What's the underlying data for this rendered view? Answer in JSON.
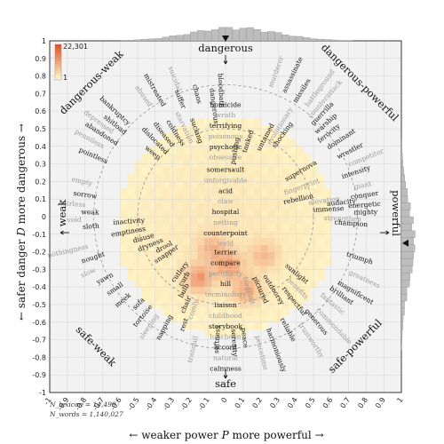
{
  "chart_data": {
    "type": "heatmap",
    "xlabel": {
      "left": "← weaker",
      "symbol": "power",
      "var": "P",
      "right": "more powerful →"
    },
    "ylabel": {
      "bottom": "← safer",
      "symbol": "danger",
      "var": "D",
      "top": "more dangerous →"
    },
    "xlim": [
      -1,
      1
    ],
    "ylim": [
      -1,
      1
    ],
    "xticks": [
      "-1",
      "-0.9",
      "-0.8",
      "-0.7",
      "-0.6",
      "-0.5",
      "-0.4",
      "-0.3",
      "-0.2",
      "-0.1",
      "0",
      "0.1",
      "0.2",
      "0.3",
      "0.4",
      "0.5",
      "0.6",
      "0.7",
      "0.8",
      "0.9",
      "1"
    ],
    "yticks": [
      "1",
      "0.9",
      "0.8",
      "0.7",
      "0.6",
      "0.5",
      "0.4",
      "0.3",
      "0.2",
      "0.1",
      "0",
      "-0.1",
      "-0.2",
      "-0.3",
      "-0.4",
      "-0.5",
      "-0.6",
      "-0.7",
      "-0.8",
      "-0.9",
      "-1"
    ],
    "colorbar": {
      "max_label": "22,301",
      "min_label": "1",
      "low_color": "#fff7c8",
      "high_color": "#e2512a"
    },
    "stats": {
      "lexicon_label": "N_lexicon",
      "lexicon_value": "14,499",
      "words_label": "N_words",
      "words_value": "1,140,027"
    },
    "grid": true,
    "directions": {
      "top": "dangerous",
      "bottom": "safe",
      "left": "weak",
      "right": "powerful",
      "top_left": "dangerous-weak",
      "top_right": "dangerous-powerful",
      "bottom_left": "safe-weak",
      "bottom_right": "safe-powerful"
    },
    "center_words": [
      {
        "text": "homicide",
        "x": 0.0,
        "y": 0.64,
        "gray": false
      },
      {
        "text": "wrath",
        "x": 0.0,
        "y": 0.58,
        "gray": true
      },
      {
        "text": "terrifying",
        "x": 0.0,
        "y": 0.52,
        "gray": false
      },
      {
        "text": "poisonous",
        "x": 0.0,
        "y": 0.46,
        "gray": true
      },
      {
        "text": "psychotic",
        "x": 0.0,
        "y": 0.4,
        "gray": false
      },
      {
        "text": "obsessive",
        "x": 0.0,
        "y": 0.34,
        "gray": true
      },
      {
        "text": "somersault",
        "x": 0.0,
        "y": 0.27,
        "gray": false
      },
      {
        "text": "unforgivable",
        "x": 0.0,
        "y": 0.21,
        "gray": true
      },
      {
        "text": "acid",
        "x": 0.0,
        "y": 0.15,
        "gray": false
      },
      {
        "text": "claw",
        "x": 0.0,
        "y": 0.09,
        "gray": true
      },
      {
        "text": "hospital",
        "x": 0.0,
        "y": 0.03,
        "gray": false
      },
      {
        "text": "netting",
        "x": 0.0,
        "y": -0.03,
        "gray": true
      },
      {
        "text": "counterpoint",
        "x": 0.0,
        "y": -0.09,
        "gray": false
      },
      {
        "text": "weld",
        "x": 0.0,
        "y": -0.15,
        "gray": true
      },
      {
        "text": "terrier",
        "x": 0.0,
        "y": -0.2,
        "gray": false
      },
      {
        "text": "compare",
        "x": 0.0,
        "y": -0.26,
        "gray": false
      },
      {
        "text": "peculiarly",
        "x": 0.0,
        "y": -0.32,
        "gray": true
      },
      {
        "text": "hill",
        "x": 0.0,
        "y": -0.38,
        "gray": false
      },
      {
        "text": "terminology",
        "x": 0.0,
        "y": -0.44,
        "gray": true
      },
      {
        "text": "liaison",
        "x": 0.0,
        "y": -0.5,
        "gray": false
      },
      {
        "text": "childhood",
        "x": 0.0,
        "y": -0.56,
        "gray": true
      },
      {
        "text": "storybook",
        "x": 0.0,
        "y": -0.62,
        "gray": false
      },
      {
        "text": "luncheon",
        "x": 0.0,
        "y": -0.68,
        "gray": true
      },
      {
        "text": "accord",
        "x": 0.0,
        "y": -0.74,
        "gray": false
      },
      {
        "text": "natural",
        "x": 0.0,
        "y": -0.8,
        "gray": true
      },
      {
        "text": "calmness",
        "x": 0.0,
        "y": -0.86,
        "gray": false
      }
    ],
    "ray_words": [
      {
        "text": "dangerous",
        "angle": 97,
        "r": 0.53,
        "gray": false
      },
      {
        "text": "bloodbath",
        "angle": 93,
        "r": 0.62,
        "gray": false
      },
      {
        "text": "murderer",
        "angle": 70,
        "r": 0.78,
        "gray": true
      },
      {
        "text": "assassinate",
        "angle": 64,
        "r": 0.78,
        "gray": false
      },
      {
        "text": "missiles",
        "angle": 58,
        "r": 0.76,
        "gray": false
      },
      {
        "text": "battleground",
        "angle": 53,
        "r": 0.78,
        "gray": true
      },
      {
        "text": "counterattack",
        "angle": 49,
        "r": 0.74,
        "gray": true
      },
      {
        "text": "guerrilla",
        "angle": 46,
        "r": 0.72,
        "gray": false
      },
      {
        "text": "warship",
        "angle": 42,
        "r": 0.7,
        "gray": false
      },
      {
        "text": "ferocity",
        "angle": 38,
        "r": 0.68,
        "gray": false
      },
      {
        "text": "dominant",
        "angle": 33,
        "r": 0.7,
        "gray": false
      },
      {
        "text": "wrestler",
        "angle": 27,
        "r": 0.72,
        "gray": false
      },
      {
        "text": "competitor",
        "angle": 22,
        "r": 0.76,
        "gray": true
      },
      {
        "text": "intensity",
        "angle": 18,
        "r": 0.7,
        "gray": false
      },
      {
        "text": "giant",
        "angle": 12,
        "r": 0.75,
        "gray": true
      },
      {
        "text": "conquer",
        "angle": 8,
        "r": 0.72,
        "gray": false
      },
      {
        "text": "energetic",
        "angle": 4,
        "r": 0.7,
        "gray": false
      },
      {
        "text": "mighty",
        "angle": 1,
        "r": 0.73,
        "gray": false
      },
      {
        "text": "triumph",
        "angle": -18,
        "r": 0.72,
        "gray": false
      },
      {
        "text": "greatness",
        "angle": -25,
        "r": 0.77,
        "gray": true
      },
      {
        "text": "magnificent",
        "angle": -31,
        "r": 0.74,
        "gray": false
      },
      {
        "text": "brilliant",
        "angle": -35,
        "r": 0.72,
        "gray": false
      },
      {
        "text": "fantastic",
        "angle": -40,
        "r": 0.7,
        "gray": true
      },
      {
        "text": "commendable",
        "angle": -46,
        "r": 0.74,
        "gray": true
      },
      {
        "text": "generous",
        "angle": -50,
        "r": 0.7,
        "gray": false
      },
      {
        "text": "trustworthy",
        "angle": -56,
        "r": 0.74,
        "gray": true
      },
      {
        "text": "reliable",
        "angle": -62,
        "r": 0.66,
        "gray": false
      },
      {
        "text": "harmoniously",
        "angle": -70,
        "r": 0.68,
        "gray": false
      },
      {
        "text": "peacetime",
        "angle": -76,
        "r": 0.7,
        "gray": true
      },
      {
        "text": "peace",
        "angle": -82,
        "r": 0.64,
        "gray": false
      },
      {
        "text": "serenity",
        "angle": -87,
        "r": 0.64,
        "gray": false
      },
      {
        "text": "softness",
        "angle": -93,
        "r": 0.62,
        "gray": false
      },
      {
        "text": "tranquil",
        "angle": -103,
        "r": 0.7,
        "gray": true
      },
      {
        "text": "rest",
        "angle": -110,
        "r": 0.62,
        "gray": false
      },
      {
        "text": "napping",
        "angle": -118,
        "r": 0.64,
        "gray": false
      },
      {
        "text": "sleeping",
        "angle": -124,
        "r": 0.68,
        "gray": true
      },
      {
        "text": "tortoise",
        "angle": -129,
        "r": 0.66,
        "gray": false
      },
      {
        "text": "sofa",
        "angle": -134,
        "r": 0.66,
        "gray": false
      },
      {
        "text": "meek",
        "angle": -140,
        "r": 0.7,
        "gray": false
      },
      {
        "text": "small",
        "angle": -146,
        "r": 0.7,
        "gray": false
      },
      {
        "text": "yawn",
        "angle": -152,
        "r": 0.72,
        "gray": false
      },
      {
        "text": "slow",
        "angle": -157,
        "r": 0.8,
        "gray": true
      },
      {
        "text": "nought",
        "angle": -162,
        "r": 0.72,
        "gray": false
      },
      {
        "text": "nothingness",
        "angle": -167,
        "r": 0.8,
        "gray": true
      },
      {
        "text": "sloth",
        "angle": -175,
        "r": 0.72,
        "gray": false
      },
      {
        "text": "void",
        "angle": -178,
        "r": 0.82,
        "gray": true
      },
      {
        "text": "weak",
        "angle": 179,
        "r": 0.72,
        "gray": false
      },
      {
        "text": "hairless",
        "angle": 176,
        "r": 0.8,
        "gray": true
      },
      {
        "text": "sorrow",
        "angle": 172,
        "r": 0.74,
        "gray": false
      },
      {
        "text": "empty",
        "angle": 167,
        "r": 0.78,
        "gray": true
      },
      {
        "text": "pointless",
        "angle": 156,
        "r": 0.74,
        "gray": false
      },
      {
        "text": "penniless",
        "angle": 151,
        "r": 0.8,
        "gray": true
      },
      {
        "text": "abandoned",
        "angle": 147,
        "r": 0.74,
        "gray": false
      },
      {
        "text": "depressed",
        "angle": 144,
        "r": 0.8,
        "gray": true
      },
      {
        "text": "shitload",
        "angle": 141,
        "r": 0.74,
        "gray": false
      },
      {
        "text": "bankruptcy",
        "angle": 137,
        "r": 0.76,
        "gray": false
      },
      {
        "text": "abused",
        "angle": 125,
        "r": 0.76,
        "gray": true
      },
      {
        "text": "mistreated",
        "angle": 120,
        "r": 0.72,
        "gray": false
      },
      {
        "text": "suicidal",
        "angle": 111,
        "r": 0.76,
        "gray": true
      },
      {
        "text": "suffer",
        "angle": 112,
        "r": 0.66,
        "gray": false
      },
      {
        "text": "chaos",
        "angle": 104,
        "r": 0.66,
        "gray": false
      }
    ],
    "inner_words": [
      {
        "text": "weep",
        "angle": 140,
        "r": 0.5,
        "gray": false
      },
      {
        "text": "dislocated",
        "angle": 134,
        "r": 0.49,
        "gray": false
      },
      {
        "text": "diseased",
        "angle": 128,
        "r": 0.5,
        "gray": false
      },
      {
        "text": "coldness",
        "angle": 122,
        "r": 0.47,
        "gray": false
      },
      {
        "text": "starvation",
        "angle": 116,
        "r": 0.46,
        "gray": true
      },
      {
        "text": "sucking",
        "angle": 110,
        "r": 0.44,
        "gray": false
      },
      {
        "text": "inactivity",
        "angle": -176,
        "r": 0.46,
        "gray": false
      },
      {
        "text": "emptiness",
        "angle": -170,
        "r": 0.46,
        "gray": false
      },
      {
        "text": "disuse",
        "angle": -164,
        "r": 0.42,
        "gray": false
      },
      {
        "text": "dryness",
        "angle": -158,
        "r": 0.38,
        "gray": false
      },
      {
        "text": "drool",
        "angle": -152,
        "r": 0.34,
        "gray": false
      },
      {
        "text": "snapper",
        "angle": -146,
        "r": 0.32,
        "gray": false
      },
      {
        "text": "cutlery",
        "angle": -128,
        "r": 0.34,
        "gray": false
      },
      {
        "text": "curb",
        "angle": -122,
        "r": 0.38,
        "gray": false
      },
      {
        "text": "bulb",
        "angle": -118,
        "r": 0.44,
        "gray": false
      },
      {
        "text": "chair",
        "angle": -113,
        "r": 0.5,
        "gray": false
      },
      {
        "text": "comfy",
        "angle": -108,
        "r": 0.5,
        "gray": true
      },
      {
        "text": "untamed",
        "angle": 62,
        "r": 0.42,
        "gray": false
      },
      {
        "text": "evolutionary",
        "angle": 58,
        "r": 0.48,
        "gray": true
      },
      {
        "text": "shocking",
        "angle": 54,
        "r": 0.48,
        "gray": false
      },
      {
        "text": "tanked",
        "angle": 72,
        "r": 0.38,
        "gray": false
      },
      {
        "text": "pushing",
        "angle": 80,
        "r": 0.3,
        "gray": false
      },
      {
        "text": "supernova",
        "angle": 30,
        "r": 0.4,
        "gray": false
      },
      {
        "text": "fingerprint",
        "angle": 20,
        "r": 0.36,
        "gray": true
      },
      {
        "text": "rebellion",
        "angle": 12,
        "r": 0.34,
        "gray": false
      },
      {
        "text": "elevation",
        "angle": 8,
        "r": 0.48,
        "gray": true
      },
      {
        "text": "immense",
        "angle": 3,
        "r": 0.5,
        "gray": false
      },
      {
        "text": "strengthen",
        "angle": -2,
        "r": 0.56,
        "gray": true
      },
      {
        "text": "audacity",
        "angle": 6,
        "r": 0.58,
        "gray": false
      },
      {
        "text": "champion",
        "angle": -4,
        "r": 0.62,
        "gray": false
      },
      {
        "text": "sunlight",
        "angle": -40,
        "r": 0.44,
        "gray": false
      },
      {
        "text": "benefits",
        "angle": -46,
        "r": 0.5,
        "gray": true
      },
      {
        "text": "respectful",
        "angle": -52,
        "r": 0.52,
        "gray": false
      },
      {
        "text": "outdoorsy",
        "angle": -58,
        "r": 0.4,
        "gray": false
      },
      {
        "text": "pictured",
        "angle": -66,
        "r": 0.38,
        "gray": false
      },
      {
        "text": "fragrant",
        "angle": -74,
        "r": 0.36,
        "gray": true
      }
    ],
    "density": {
      "center_x": 0.0,
      "center_y": -0.05,
      "radius": 0.62,
      "hotspots": [
        {
          "x": -0.15,
          "y": -0.35,
          "level": 0.85
        },
        {
          "x": 0.12,
          "y": -0.42,
          "level": 0.7
        },
        {
          "x": 0.02,
          "y": -0.28,
          "level": 0.75
        },
        {
          "x": -0.08,
          "y": -0.18,
          "level": 0.55
        },
        {
          "x": 0.22,
          "y": -0.22,
          "level": 0.5
        }
      ]
    }
  }
}
